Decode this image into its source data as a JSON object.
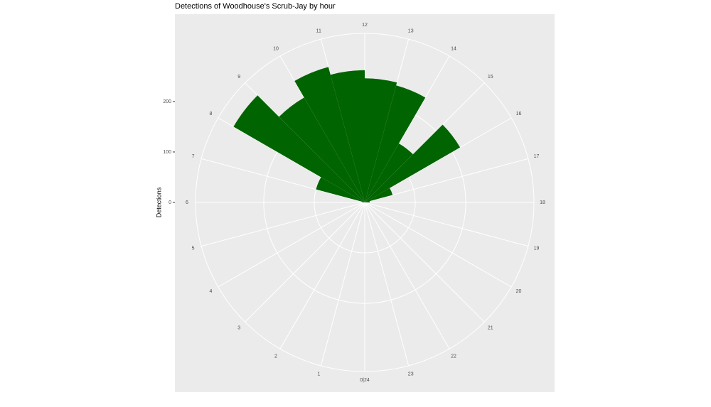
{
  "chart_data": {
    "type": "polar-bar",
    "title": "Detections of Woodhouse's Scrub-Jay by hour",
    "y_label": "Detections",
    "x": [
      0,
      1,
      2,
      3,
      4,
      5,
      6,
      7,
      8,
      9,
      10,
      11,
      12,
      13,
      14,
      15,
      16,
      17,
      18,
      19,
      20,
      21,
      22,
      23
    ],
    "values": [
      0,
      0,
      0,
      0,
      0,
      0,
      5,
      100,
      300,
      240,
      278,
      262,
      246,
      240,
      135,
      218,
      57,
      10,
      0,
      0,
      0,
      0,
      0,
      0
    ],
    "color": "#006400",
    "xlim": [
      0,
      24
    ],
    "xticks": [
      {
        "value": 0,
        "label": "0|24"
      },
      1,
      2,
      3,
      4,
      5,
      6,
      7,
      8,
      9,
      10,
      11,
      12,
      13,
      14,
      15,
      16,
      17,
      18,
      19,
      20,
      21,
      22,
      23
    ],
    "ylim": [
      0,
      335
    ],
    "yticks": [
      0,
      100,
      200
    ],
    "grid": true
  }
}
